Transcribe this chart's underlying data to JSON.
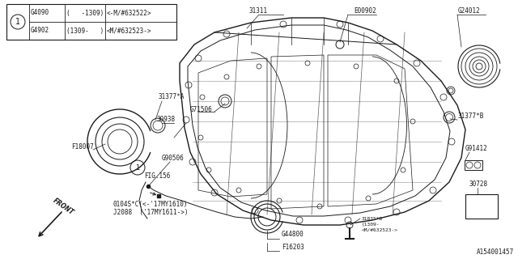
{
  "bg_color": "#ffffff",
  "line_color": "#1a1a1a",
  "diagram_id": "A154001457",
  "table": {
    "circle_label": "1",
    "rows": [
      [
        "G4090",
        "(   -1309)",
        "<-M/#632522>"
      ],
      [
        "G4902",
        "(1309-   )",
        "<M/#632523->"
      ]
    ]
  },
  "figsize": [
    6.4,
    3.2
  ],
  "dpi": 100
}
